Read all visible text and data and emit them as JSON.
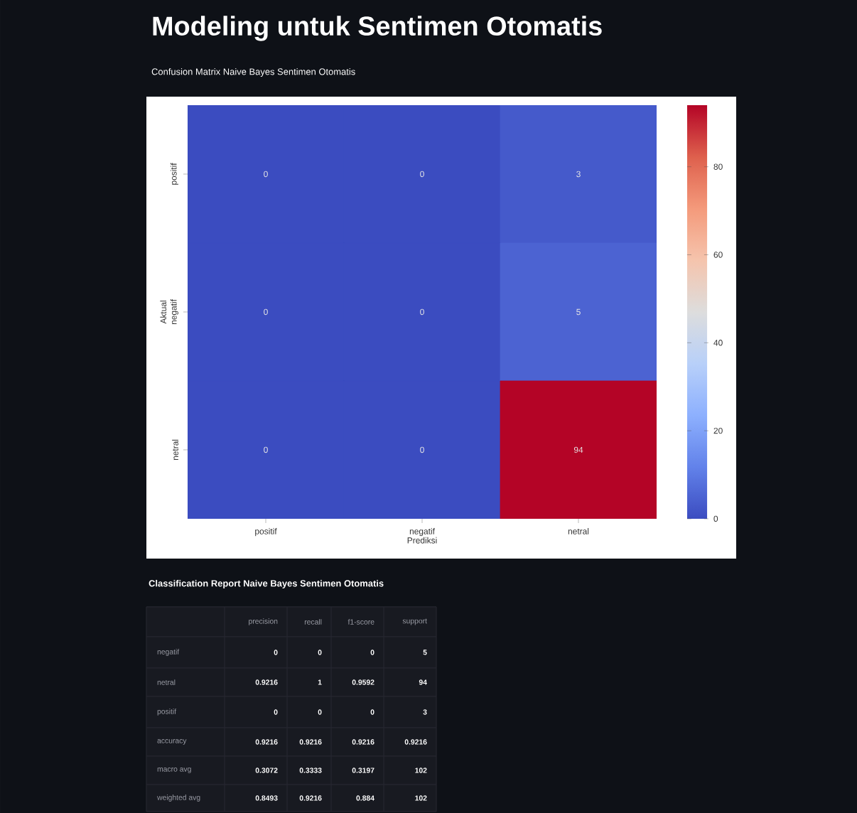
{
  "chart_data": [
    {
      "type": "heatmap",
      "title": "Modeling untuk Sentimen Otomatis",
      "subtitle": "Confusion Matrix Naive Bayes Sentimen Otomatis",
      "xlabel": "Prediksi",
      "ylabel": "Aktual",
      "categories": [
        "positif",
        "negatif",
        "netral"
      ],
      "y_categories": [
        "positif",
        "negatif",
        "netral"
      ],
      "cells": [
        [
          0,
          0,
          3
        ],
        [
          0,
          0,
          5
        ],
        [
          0,
          0,
          94
        ]
      ],
      "clim": [
        0,
        94
      ],
      "cticks": [
        0,
        20,
        40,
        60,
        80
      ],
      "data_labels": true
    },
    {
      "type": "other",
      "title": "Classification Report Naive Bayes Sentimen Otomatis",
      "data_labels": true,
      "categories": [
        "precision",
        "recall",
        "f1-score",
        "support"
      ],
      "y_categories": [
        "negatif",
        "netral",
        "positif",
        "accuracy",
        "macro avg",
        "weighted avg"
      ],
      "cell_labels": [
        [
          "0",
          "0",
          "0",
          "5"
        ],
        [
          "0.9216",
          "1",
          "0.9592",
          "94"
        ],
        [
          "0",
          "0",
          "0",
          "3"
        ],
        [
          "0.9216",
          "0.9216",
          "0.9216",
          "0.9216"
        ],
        [
          "0.3072",
          "0.3333",
          "0.3197",
          "102"
        ],
        [
          "0.8493",
          "0.9216",
          "0.884",
          "102"
        ]
      ]
    }
  ]
}
